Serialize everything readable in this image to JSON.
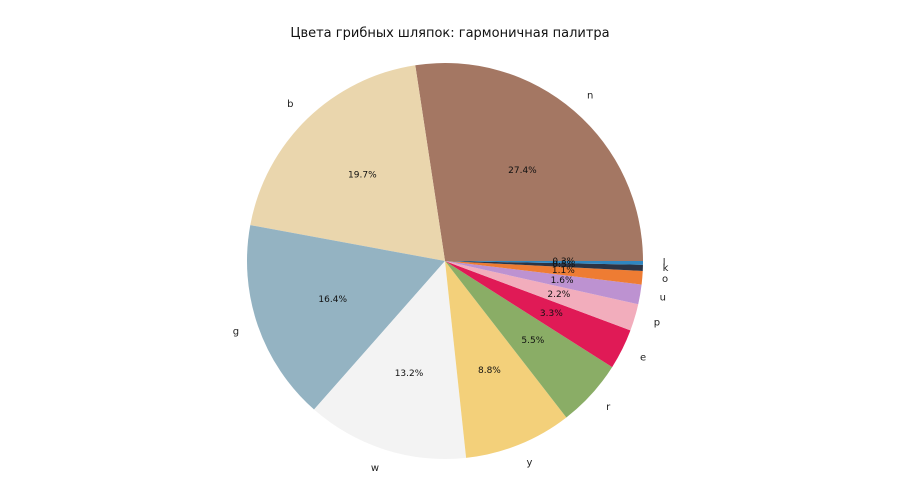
{
  "chart_data": {
    "type": "pie",
    "title": "Цвета грибных шляпок: гармоничная палитра",
    "categories": [
      "n",
      "b",
      "g",
      "w",
      "y",
      "r",
      "e",
      "p",
      "u",
      "o",
      "k",
      "l"
    ],
    "values": [
      27.4,
      19.7,
      16.4,
      13.2,
      8.8,
      5.5,
      3.3,
      2.2,
      1.6,
      1.1,
      0.5,
      0.3
    ],
    "labels": [
      "27.4%",
      "19.7%",
      "16.4%",
      "13.2%",
      "8.8%",
      "5.5%",
      "3.3%",
      "2.2%",
      "1.6%",
      "1.1%",
      "0.5%",
      "0.3%"
    ],
    "colors": [
      "#a47763",
      "#ead6ad",
      "#94b3c2",
      "#f3f3f3",
      "#f3d07a",
      "#8aad66",
      "#e01a56",
      "#f2adbc",
      "#bd92d1",
      "#ee7c33",
      "#2b3445",
      "#2f86c0"
    ],
    "start_angle": 0,
    "direction": "counterclockwise"
  }
}
